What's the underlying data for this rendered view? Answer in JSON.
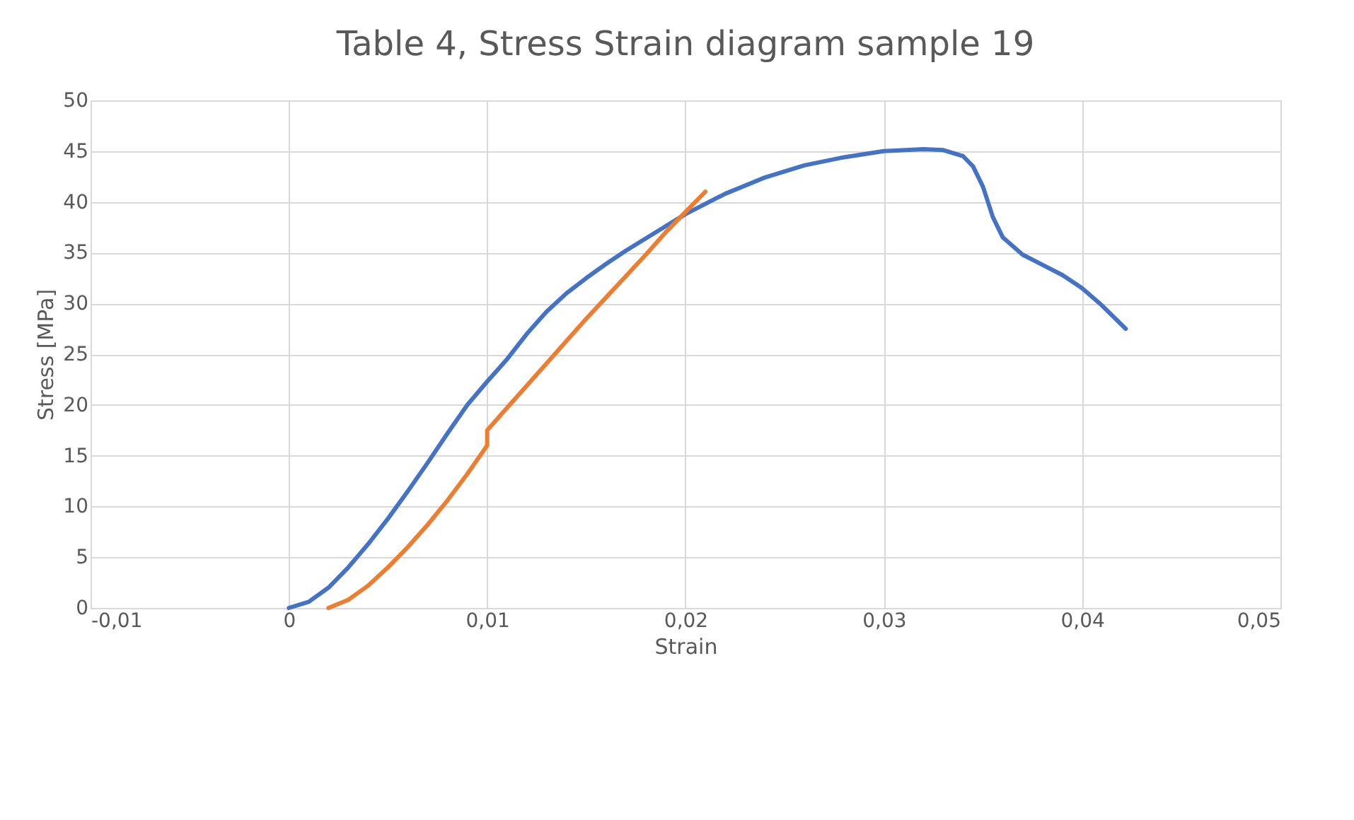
{
  "chart_data": {
    "type": "line",
    "title": "Table 4, Stress Strain diagram sample 19",
    "xlabel": "Strain",
    "ylabel": "Stress [MPa]",
    "xlim": [
      -0.01,
      0.05
    ],
    "xticks": [
      {
        "value": -0.01,
        "label": "-0,01"
      },
      0,
      {
        "value": 0.01,
        "label": "0,01"
      },
      {
        "value": 0.02,
        "label": "0,02"
      },
      {
        "value": 0.03,
        "label": "0,03"
      },
      {
        "value": 0.04,
        "label": "0,04"
      },
      {
        "value": 0.05,
        "label": "0,05"
      }
    ],
    "ylim": [
      0,
      50
    ],
    "yticks": [
      0,
      5,
      10,
      15,
      20,
      25,
      30,
      35,
      40,
      45,
      50
    ],
    "grid": true,
    "legend": false,
    "marker": "none",
    "line_style": "solid",
    "series": [
      {
        "color": "#4472c4",
        "x": [
          0,
          0.001,
          0.002,
          0.003,
          0.004,
          0.005,
          0.006,
          0.007,
          0.008,
          0.009,
          0.01,
          0.011,
          0.012,
          0.013,
          0.014,
          0.015,
          0.016,
          0.017,
          0.018,
          0.019,
          0.02,
          0.022,
          0.024,
          0.026,
          0.028,
          0.03,
          0.032,
          0.033,
          0.034,
          0.0345,
          0.035,
          0.0355,
          0.036,
          0.037,
          0.038,
          0.039,
          0.04,
          0.041,
          0.0422
        ],
        "values": [
          0,
          0.6,
          2,
          4,
          6.3,
          8.8,
          11.5,
          14.3,
          17.2,
          20,
          22.3,
          24.5,
          27,
          29.2,
          31,
          32.5,
          33.9,
          35.2,
          36.4,
          37.6,
          38.8,
          40.8,
          42.4,
          43.6,
          44.4,
          45,
          45.2,
          45.1,
          44.5,
          43.5,
          41.5,
          38.5,
          36.5,
          34.8,
          33.8,
          32.8,
          31.5,
          29.8,
          27.5
        ]
      },
      {
        "color": "#ed7d31",
        "x": [
          0.002,
          0.003,
          0.004,
          0.005,
          0.006,
          0.007,
          0.008,
          0.009,
          0.01,
          0.01,
          0.011,
          0.012,
          0.013,
          0.014,
          0.015,
          0.016,
          0.017,
          0.018,
          0.019,
          0.02,
          0.021
        ],
        "values": [
          0,
          0.8,
          2.2,
          4,
          6,
          8.2,
          10.6,
          13.2,
          16,
          17.5,
          19.7,
          21.9,
          24.1,
          26.3,
          28.5,
          30.6,
          32.7,
          34.8,
          37,
          39,
          41
        ]
      }
    ]
  }
}
